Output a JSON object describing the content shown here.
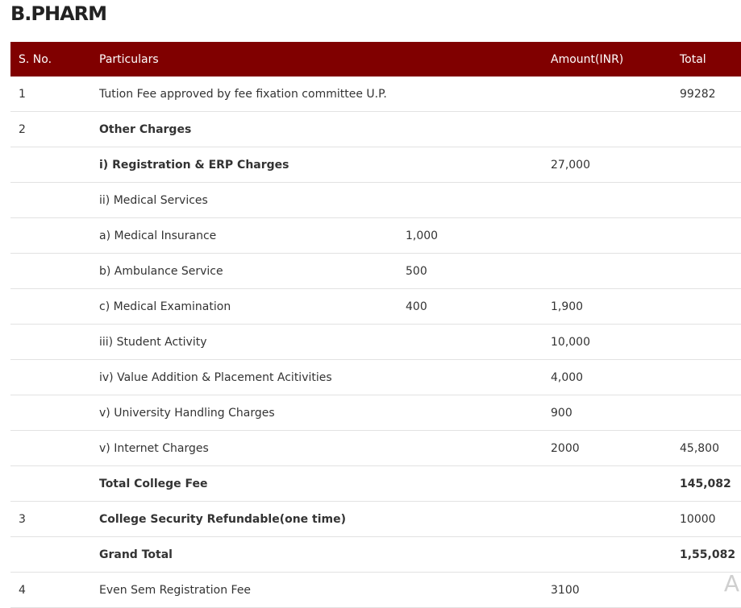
{
  "page": {
    "title": "B.PHARM"
  },
  "table": {
    "headers": [
      "S. No.",
      "Particulars",
      "",
      "Amount(INR)",
      "Total"
    ],
    "rows": [
      {
        "sno": "1",
        "particular": "Tution Fee approved by fee fixation committee U.P.",
        "sub_amount": "",
        "amount": "",
        "total": "99282",
        "bold_particular": false,
        "bold_total": false
      },
      {
        "sno": "2",
        "particular": "Other Charges",
        "sub_amount": "",
        "amount": "",
        "total": "",
        "bold_particular": true,
        "bold_total": false
      },
      {
        "sno": "",
        "particular": "i) Registration & ERP Charges",
        "sub_amount": "",
        "amount": "27,000",
        "total": "",
        "bold_particular": true,
        "bold_total": false
      },
      {
        "sno": "",
        "particular": "ii) Medical Services",
        "sub_amount": "",
        "amount": "",
        "total": "",
        "bold_particular": false,
        "bold_total": false
      },
      {
        "sno": "",
        "particular": "a) Medical Insurance",
        "sub_amount": "1,000",
        "amount": "",
        "total": "",
        "bold_particular": false,
        "bold_total": false
      },
      {
        "sno": "",
        "particular": "b) Ambulance Service",
        "sub_amount": "500",
        "amount": "",
        "total": "",
        "bold_particular": false,
        "bold_total": false
      },
      {
        "sno": "",
        "particular": "c) Medical Examination",
        "sub_amount": "400",
        "amount": "1,900",
        "total": "",
        "bold_particular": false,
        "bold_total": false
      },
      {
        "sno": "",
        "particular": "iii) Student Activity",
        "sub_amount": "",
        "amount": "10,000",
        "total": "",
        "bold_particular": false,
        "bold_total": false
      },
      {
        "sno": "",
        "particular": "iv) Value Addition & Placement Acitivities",
        "sub_amount": "",
        "amount": "4,000",
        "total": "",
        "bold_particular": false,
        "bold_total": false
      },
      {
        "sno": "",
        "particular": "v) University Handling Charges",
        "sub_amount": "",
        "amount": "900",
        "total": "",
        "bold_particular": false,
        "bold_total": false
      },
      {
        "sno": "",
        "particular": "v) Internet Charges",
        "sub_amount": "",
        "amount": "2000",
        "total": "45,800",
        "bold_particular": false,
        "bold_total": false
      },
      {
        "sno": "",
        "particular": "Total College Fee",
        "sub_amount": "",
        "amount": "",
        "total": "145,082",
        "bold_particular": true,
        "bold_total": true
      },
      {
        "sno": "3",
        "particular": "College Security Refundable(one time)",
        "sub_amount": "",
        "amount": "",
        "total": "10000",
        "bold_particular": true,
        "bold_total": false
      },
      {
        "sno": "",
        "particular": "Grand Total",
        "sub_amount": "",
        "amount": "",
        "total": "1,55,082",
        "bold_particular": true,
        "bold_total": true
      },
      {
        "sno": "4",
        "particular": "Even Sem Registration Fee",
        "sub_amount": "",
        "amount": "3100",
        "total": "",
        "bold_particular": false,
        "bold_total": false
      }
    ]
  },
  "corner": {
    "glyph": "A"
  }
}
